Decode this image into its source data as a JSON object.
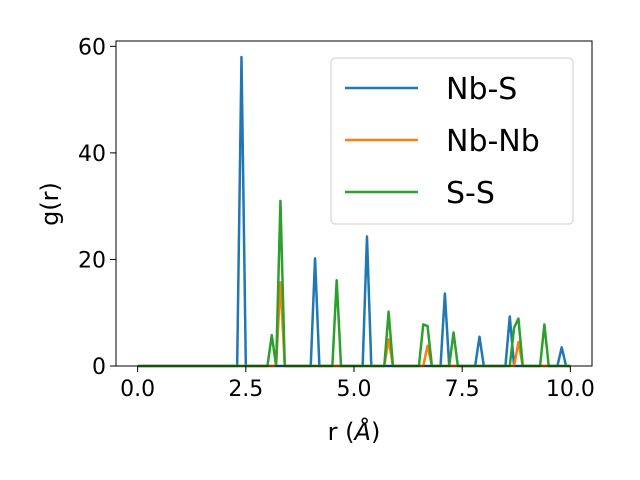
{
  "chart_data": {
    "type": "line",
    "title": "",
    "xlabel_main": "r (",
    "xlabel_unit": "Å",
    "xlabel_close": ")",
    "ylabel": "g(r)",
    "xlim": [
      -0.5,
      10.5
    ],
    "ylim": [
      0,
      61
    ],
    "xticks": [
      0.0,
      2.5,
      5.0,
      7.5,
      10.0
    ],
    "xtick_labels": [
      "0.0",
      "2.5",
      "5.0",
      "7.5",
      "10.0"
    ],
    "yticks": [
      0,
      20,
      40,
      60
    ],
    "ytick_labels": [
      "0",
      "20",
      "40",
      "60"
    ],
    "grid": false,
    "legend_position": "top-right",
    "series": [
      {
        "name": "Nb-S",
        "color": "#1f77b4",
        "x": [
          0,
          2.3,
          2.4,
          2.5,
          4.0,
          4.1,
          4.2,
          5.2,
          5.3,
          5.4,
          7.0,
          7.1,
          7.2,
          7.8,
          7.9,
          8.0,
          8.5,
          8.6,
          8.7,
          9.7,
          9.8,
          9.9,
          10.0
        ],
        "y": [
          0,
          0,
          58,
          0,
          0,
          20.2,
          0,
          0,
          24.3,
          0,
          0,
          13.6,
          0,
          0,
          5.5,
          0,
          0,
          9.3,
          0,
          0,
          3.5,
          0,
          0
        ]
      },
      {
        "name": "Nb-Nb",
        "color": "#ff7f0e",
        "x": [
          0,
          3.2,
          3.3,
          3.4,
          5.7,
          5.8,
          5.9,
          6.6,
          6.7,
          6.8,
          8.7,
          8.8,
          8.9,
          10.0
        ],
        "y": [
          0,
          0,
          15.7,
          0,
          0,
          5.0,
          0,
          0,
          3.8,
          0,
          0,
          4.5,
          0,
          0
        ]
      },
      {
        "name": "S-S",
        "color": "#2ca02c",
        "x": [
          0,
          3.0,
          3.1,
          3.2,
          3.3,
          3.4,
          4.5,
          4.6,
          4.7,
          5.7,
          5.8,
          5.9,
          6.5,
          6.6,
          6.7,
          6.8,
          7.2,
          7.3,
          7.4,
          8.6,
          8.7,
          8.8,
          8.9,
          9.3,
          9.4,
          9.5,
          10.0
        ],
        "y": [
          0,
          0,
          5.8,
          0,
          31,
          0,
          0,
          16.1,
          0,
          0,
          10.2,
          0,
          0,
          7.8,
          7.5,
          0,
          0,
          6.3,
          0,
          0,
          7.2,
          8.9,
          0,
          0,
          7.8,
          0,
          0
        ]
      }
    ]
  }
}
